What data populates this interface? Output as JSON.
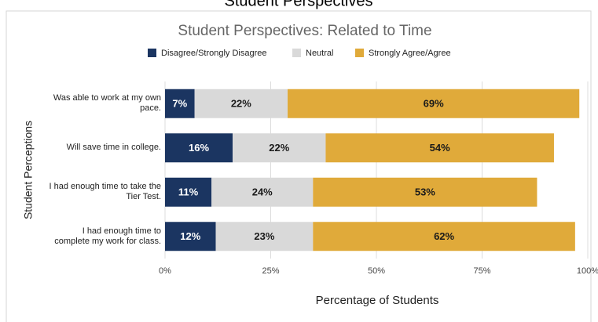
{
  "chart_data": {
    "type": "stacked_bar_horizontal",
    "super_title": "Student Perspectives",
    "title": "Student Perspectives: Related to Time",
    "x_label": "Percentage of Students",
    "y_label": "Student Perceptions",
    "categories": [
      "Was able to work at my own pace.",
      "Will save time in college.",
      "I had enough time to take the Tier Test.",
      "I had enough time to complete my work for class."
    ],
    "series": [
      {
        "name": "Disagree/Strongly Disagree",
        "color": "#1b3561",
        "label_color": "#ffffff",
        "values": [
          7,
          16,
          11,
          12
        ],
        "value_labels": [
          "7%",
          "16%",
          "11%",
          "12%"
        ]
      },
      {
        "name": "Neutral",
        "color": "#d9d9d9",
        "label_color": "#1a1a1a",
        "values": [
          22,
          22,
          24,
          23
        ],
        "value_labels": [
          "22%",
          "22%",
          "24%",
          "23%"
        ]
      },
      {
        "name": "Strongly Agree/Agree",
        "color": "#e0aa3a",
        "label_color": "#1a1a1a",
        "values": [
          69,
          54,
          53,
          62
        ],
        "value_labels": [
          "69%",
          "54%",
          "53%",
          "62%"
        ]
      }
    ],
    "xlim": [
      0,
      100
    ],
    "xticks": [
      {
        "value": 0,
        "label": "0%"
      },
      {
        "value": 25,
        "label": "25%"
      },
      {
        "value": 50,
        "label": "50%"
      },
      {
        "value": 75,
        "label": "75%"
      },
      {
        "value": 100,
        "label": "100%"
      }
    ],
    "grid": true,
    "legend": "top"
  }
}
